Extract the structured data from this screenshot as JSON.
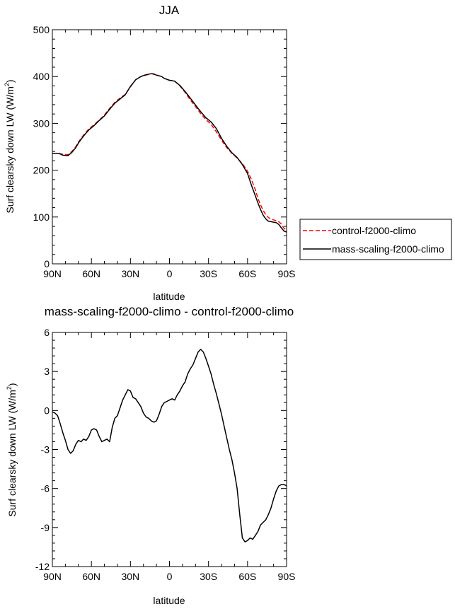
{
  "chart_data": [
    {
      "type": "line",
      "title": "JJA",
      "xlabel": "latitude",
      "ylabel": "Surf clearsky down LW (W/m²)",
      "xlim": [
        90,
        -90
      ],
      "ylim": [
        0,
        500
      ],
      "xticks": [
        90,
        60,
        30,
        0,
        -30,
        -60,
        -90
      ],
      "xtick_labels": [
        "90N",
        "60N",
        "30N",
        "0",
        "30S",
        "60S",
        "90S"
      ],
      "yticks": [
        0,
        100,
        200,
        300,
        400,
        500
      ],
      "ytick_labels": [
        "0",
        "100",
        "200",
        "300",
        "400",
        "500"
      ],
      "legend": {
        "placement": "right-outside"
      },
      "series": [
        {
          "name": "control-f2000-climo",
          "color": "#ff0000",
          "dash": "dashed",
          "x": [
            90,
            85,
            82,
            78,
            75,
            72,
            70,
            66,
            62,
            58,
            54,
            50,
            46,
            42,
            38,
            34,
            30,
            26,
            22,
            18,
            14,
            12,
            10,
            6,
            4,
            0,
            -4,
            -8,
            -12,
            -16,
            -20,
            -24,
            -28,
            -32,
            -36,
            -40,
            -44,
            -48,
            -52,
            -56,
            -60,
            -63,
            -66,
            -68,
            -70,
            -72,
            -74,
            -76,
            -78,
            -80,
            -82,
            -84,
            -86,
            -88,
            -90
          ],
          "y": [
            236,
            236,
            234,
            233,
            240,
            250,
            260,
            275,
            288,
            297,
            307,
            318,
            332,
            345,
            354,
            362,
            378,
            393,
            400,
            403,
            406,
            406,
            403,
            400,
            396,
            392,
            390,
            380,
            366,
            350,
            336,
            321,
            308,
            298,
            282,
            264,
            248,
            236,
            226,
            214,
            198,
            180,
            158,
            140,
            126,
            114,
            105,
            99,
            96,
            94,
            92,
            90,
            85,
            76,
            72
          ]
        },
        {
          "name": "mass-scaling-f2000-climo",
          "color": "#000000",
          "dash": "solid",
          "x": [
            90,
            85,
            82,
            78,
            75,
            72,
            70,
            66,
            62,
            58,
            54,
            50,
            46,
            42,
            38,
            34,
            30,
            26,
            22,
            18,
            14,
            12,
            10,
            6,
            4,
            0,
            -4,
            -8,
            -12,
            -16,
            -20,
            -24,
            -28,
            -32,
            -36,
            -40,
            -44,
            -48,
            -52,
            -56,
            -60,
            -63,
            -66,
            -68,
            -70,
            -72,
            -74,
            -76,
            -78,
            -80,
            -82,
            -84,
            -86,
            -88,
            -90
          ],
          "y": [
            236,
            236,
            232,
            231,
            238,
            248,
            258,
            273,
            286,
            295,
            306,
            316,
            330,
            343,
            352,
            361,
            379,
            393,
            400,
            404,
            406,
            405,
            403,
            400,
            396,
            392,
            390,
            381,
            368,
            354,
            339,
            325,
            312,
            303,
            289,
            268,
            251,
            237,
            227,
            212,
            193,
            168,
            145,
            130,
            116,
            104,
            96,
            91,
            90,
            89,
            88,
            84,
            77,
            70,
            68
          ]
        }
      ]
    },
    {
      "type": "line",
      "title": "mass-scaling-f2000-climo - control-f2000-climo",
      "xlabel": "latitude",
      "ylabel": "Surf clearsky down LW (W/m²)",
      "xlim": [
        90,
        -90
      ],
      "ylim": [
        -12,
        6
      ],
      "xticks": [
        90,
        60,
        30,
        0,
        -30,
        -60,
        -90
      ],
      "xtick_labels": [
        "90N",
        "60N",
        "30N",
        "0",
        "30S",
        "60S",
        "90S"
      ],
      "yticks": [
        6,
        3,
        0,
        -3,
        -6,
        -9,
        -12
      ],
      "ytick_labels": [
        "6",
        "3",
        "0",
        "-3",
        "-6",
        "-9",
        "-12"
      ],
      "series": [
        {
          "name": "mass-scaling-f2000-climo - control-f2000-climo",
          "color": "#000000",
          "dash": "solid",
          "x": [
            90,
            88,
            86,
            84,
            82,
            80,
            78,
            76,
            74,
            72,
            70,
            68,
            66,
            64,
            62,
            60,
            58,
            56,
            54,
            52,
            50,
            48,
            46,
            44,
            42,
            40,
            38,
            36,
            34,
            32,
            30,
            28,
            26,
            24,
            22,
            20,
            18,
            16,
            14,
            12,
            10,
            8,
            6,
            4,
            2,
            0,
            -2,
            -4,
            -6,
            -8,
            -10,
            -12,
            -14,
            -16,
            -18,
            -20,
            -22,
            -24,
            -26,
            -28,
            -30,
            -32,
            -34,
            -36,
            -38,
            -40,
            -42,
            -44,
            -46,
            -48,
            -50,
            -52,
            -54,
            -56,
            -58,
            -60,
            -62,
            -64,
            -66,
            -68,
            -70,
            -72,
            -74,
            -76,
            -78,
            -80,
            -82,
            -84,
            -86,
            -88,
            -90
          ],
          "y": [
            -0.1,
            -0.2,
            -0.4,
            -1.0,
            -1.7,
            -2.3,
            -3.0,
            -3.3,
            -3.1,
            -2.6,
            -2.3,
            -2.4,
            -2.2,
            -2.3,
            -2.0,
            -1.5,
            -1.4,
            -1.5,
            -2.0,
            -2.4,
            -2.3,
            -2.2,
            -2.4,
            -1.3,
            -0.6,
            -0.4,
            0.2,
            0.8,
            1.2,
            1.6,
            1.5,
            1.0,
            0.9,
            0.6,
            0.3,
            -0.2,
            -0.5,
            -0.6,
            -0.8,
            -0.9,
            -0.8,
            -0.3,
            0.3,
            0.6,
            0.7,
            0.8,
            0.9,
            0.8,
            1.2,
            1.5,
            1.9,
            2.2,
            2.8,
            3.2,
            3.5,
            4.0,
            4.5,
            4.7,
            4.5,
            4.0,
            3.4,
            2.8,
            2.0,
            1.3,
            0.5,
            -0.3,
            -1.2,
            -2.1,
            -3.0,
            -3.8,
            -4.8,
            -6.0,
            -8.0,
            -9.8,
            -10.1,
            -10.0,
            -9.8,
            -9.9,
            -9.6,
            -9.3,
            -8.8,
            -8.6,
            -8.4,
            -8.0,
            -7.5,
            -6.8,
            -6.2,
            -5.8,
            -5.7,
            -5.7,
            -5.8
          ]
        }
      ]
    }
  ]
}
